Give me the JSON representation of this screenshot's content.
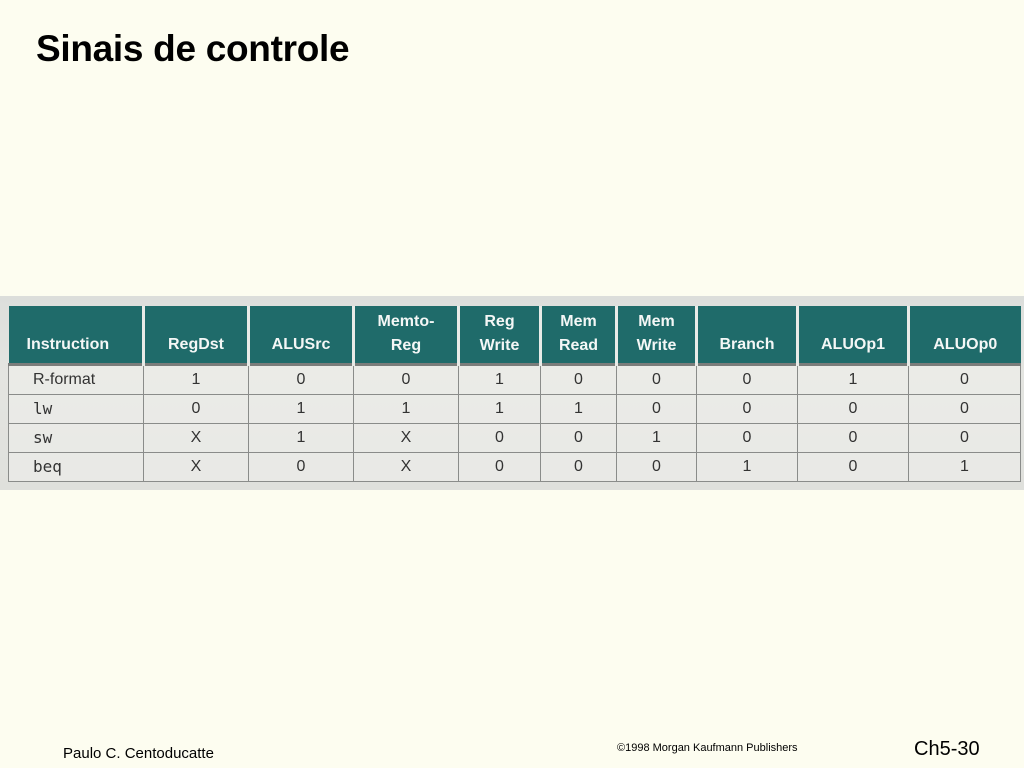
{
  "slide": {
    "title": "Sinais de controle"
  },
  "table": {
    "headers": [
      {
        "line1": "Instruction",
        "line2": ""
      },
      {
        "line1": "RegDst",
        "line2": ""
      },
      {
        "line1": "ALUSrc",
        "line2": ""
      },
      {
        "line1": "Memto-",
        "line2": "Reg"
      },
      {
        "line1": "Reg",
        "line2": "Write"
      },
      {
        "line1": "Mem",
        "line2": "Read"
      },
      {
        "line1": "Mem",
        "line2": "Write"
      },
      {
        "line1": "Branch",
        "line2": ""
      },
      {
        "line1": "ALUOp1",
        "line2": ""
      },
      {
        "line1": "ALUOp0",
        "line2": ""
      }
    ],
    "rows": [
      [
        "R-format",
        "1",
        "0",
        "0",
        "1",
        "0",
        "0",
        "0",
        "1",
        "0"
      ],
      [
        "lw",
        "0",
        "1",
        "1",
        "1",
        "1",
        "0",
        "0",
        "0",
        "0"
      ],
      [
        "sw",
        "X",
        "1",
        "X",
        "0",
        "0",
        "1",
        "0",
        "0",
        "0"
      ],
      [
        "beq",
        "X",
        "0",
        "X",
        "0",
        "0",
        "0",
        "1",
        "0",
        "1"
      ]
    ]
  },
  "footer": {
    "author": "Paulo C. Centoducatte",
    "copyright": "©1998 Morgan Kaufmann Publishers",
    "page": "Ch5-30"
  }
}
